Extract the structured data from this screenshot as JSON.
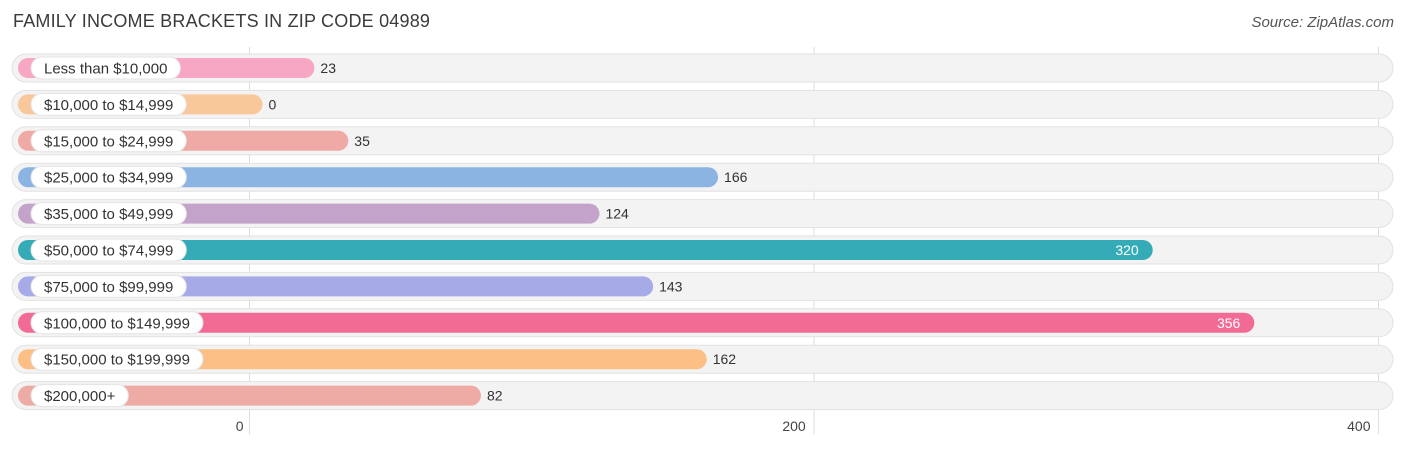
{
  "header": {
    "title": "FAMILY INCOME BRACKETS IN ZIP CODE 04989",
    "source": "Source: ZipAtlas.com"
  },
  "chart_data": {
    "type": "bar",
    "orientation": "horizontal",
    "title": "FAMILY INCOME BRACKETS IN ZIP CODE 04989",
    "xlabel": "",
    "ylabel": "",
    "xlim": [
      0,
      400
    ],
    "ticks": [
      0,
      200,
      400
    ],
    "tick_labels": [
      "0",
      "200",
      "400"
    ],
    "grid": true,
    "categories": [
      "Less than $10,000",
      "$10,000 to $14,999",
      "$15,000 to $24,999",
      "$25,000 to $34,999",
      "$35,000 to $49,999",
      "$50,000 to $74,999",
      "$75,000 to $99,999",
      "$100,000 to $149,999",
      "$150,000 to $199,999",
      "$200,000+"
    ],
    "values": [
      23,
      0,
      35,
      166,
      124,
      320,
      143,
      356,
      162,
      82
    ],
    "value_labels": [
      "23",
      "0",
      "35",
      "166",
      "124",
      "320",
      "143",
      "356",
      "162",
      "82"
    ],
    "colors": [
      "#f7a6c3",
      "#f9c89a",
      "#f0aaa6",
      "#8cb4e3",
      "#c4a3cb",
      "#35abb8",
      "#a6abe8",
      "#f26b95",
      "#fcbf85",
      "#eeaaa4"
    ],
    "label_inside": [
      false,
      false,
      false,
      false,
      false,
      true,
      false,
      true,
      false,
      false
    ]
  }
}
